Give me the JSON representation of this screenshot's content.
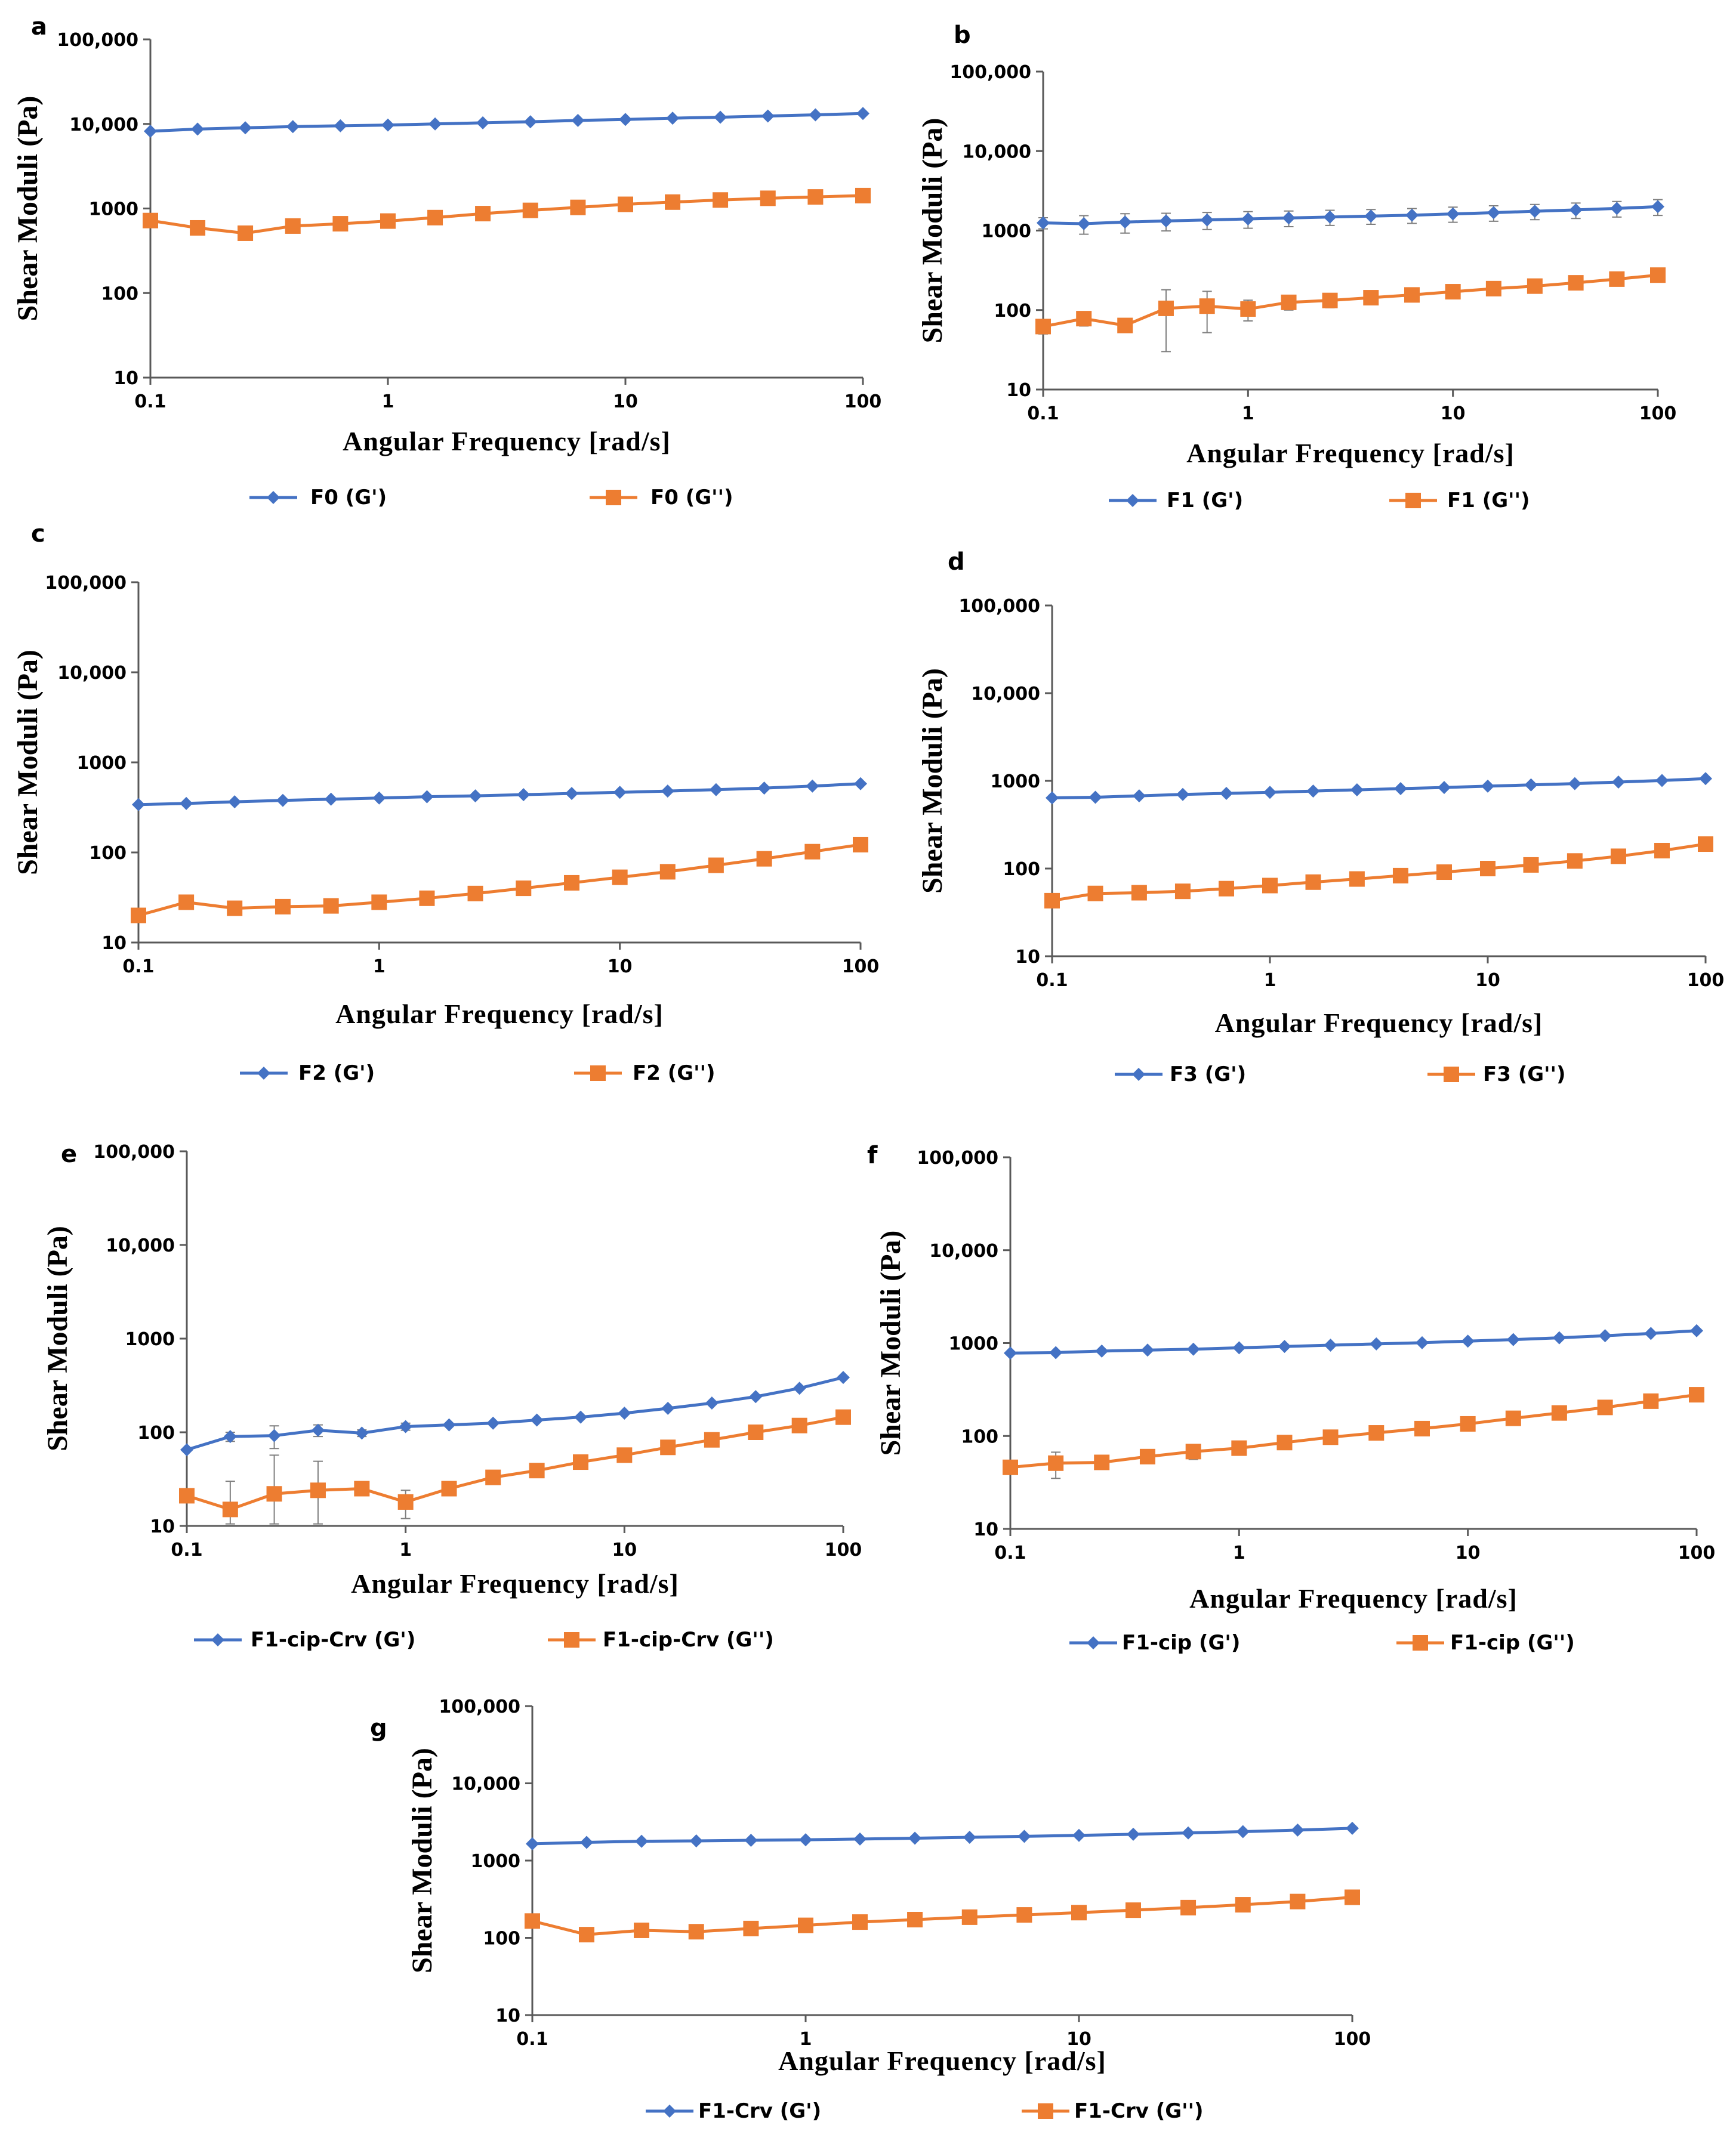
{
  "colors": {
    "gprime": "#4472C4",
    "gdouble": "#ED7D31",
    "axis": "#595959",
    "error": "#7F7F7F"
  },
  "chart_data": [
    {
      "panel": "a",
      "type": "line",
      "ylabel": "Shear Moduli (Pa)",
      "xlabel": "Angular Frequency [rad/s]",
      "xscale": "log",
      "yscale": "log",
      "xlim": [
        0.1,
        100
      ],
      "ylim": [
        10,
        100000
      ],
      "x_tick_labels": [
        "0.1",
        "1",
        "10",
        "100"
      ],
      "y_tick_labels": [
        "10",
        "100",
        "1000",
        "10,000",
        "100,000"
      ],
      "x": [
        0.1,
        0.158,
        0.251,
        0.398,
        0.631,
        1,
        1.58,
        2.51,
        3.98,
        6.31,
        10,
        15.8,
        25.1,
        39.8,
        63.1,
        100
      ],
      "series": [
        {
          "name": "F0 (G')",
          "legend": "F0 (G')",
          "marker": "diamond",
          "values": [
            8200,
            8700,
            9000,
            9300,
            9500,
            9700,
            10000,
            10300,
            10600,
            11000,
            11300,
            11700,
            12000,
            12400,
            12800,
            13300
          ]
        },
        {
          "name": "F0 (G'')",
          "legend": "F0 (G'')",
          "marker": "square",
          "values": [
            720,
            590,
            510,
            620,
            660,
            710,
            780,
            870,
            950,
            1030,
            1120,
            1190,
            1260,
            1320,
            1370,
            1420
          ]
        }
      ]
    },
    {
      "panel": "b",
      "type": "line",
      "ylabel": "Shear Moduli (Pa)",
      "xlabel": "Angular Frequency [rad/s]",
      "xscale": "log",
      "yscale": "log",
      "xlim": [
        0.1,
        100
      ],
      "ylim": [
        10,
        100000
      ],
      "x_tick_labels": [
        "0.1",
        "1",
        "10",
        "100"
      ],
      "y_tick_labels": [
        "10",
        "100",
        "1000",
        "10,000",
        "100,000"
      ],
      "x": [
        0.1,
        0.158,
        0.251,
        0.398,
        0.631,
        1,
        1.58,
        2.51,
        3.98,
        6.31,
        10,
        15.8,
        25.1,
        39.8,
        63.1,
        100
      ],
      "series": [
        {
          "name": "F1 (G')",
          "legend": "F1    (G')",
          "marker": "diamond",
          "values": [
            1250,
            1220,
            1280,
            1320,
            1360,
            1400,
            1440,
            1480,
            1520,
            1560,
            1620,
            1680,
            1750,
            1820,
            1900,
            2000
          ],
          "errors": [
            200,
            320,
            350,
            330,
            330,
            330,
            320,
            320,
            320,
            330,
            350,
            370,
            380,
            400,
            420,
            450
          ]
        },
        {
          "name": "F1 (G'')",
          "legend": "F1    (G'')",
          "marker": "square",
          "values": [
            62,
            78,
            64,
            105,
            112,
            103,
            125,
            132,
            143,
            155,
            170,
            186,
            200,
            220,
            245,
            275
          ],
          "errors": [
            12,
            15,
            10,
            75,
            60,
            30,
            25,
            25,
            25,
            25,
            25,
            25,
            25,
            25,
            25,
            25
          ]
        }
      ]
    },
    {
      "panel": "c",
      "type": "line",
      "ylabel": "Shear Moduli (Pa)",
      "xlabel": "Angular Frequency [rad/s]",
      "xscale": "log",
      "yscale": "log",
      "xlim": [
        0.1,
        100
      ],
      "ylim": [
        10,
        100000
      ],
      "x_tick_labels": [
        "0.1",
        "1",
        "10",
        "100"
      ],
      "y_tick_labels": [
        "10",
        "100",
        "1000",
        "10,000",
        "100,000"
      ],
      "x": [
        0.1,
        0.158,
        0.251,
        0.398,
        0.631,
        1,
        1.58,
        2.51,
        3.98,
        6.31,
        10,
        15.8,
        25.1,
        39.8,
        63.1,
        100
      ],
      "series": [
        {
          "name": "F2 (G')",
          "legend": "F2 (G')",
          "marker": "diamond",
          "values": [
            340,
            350,
            365,
            378,
            390,
            402,
            415,
            425,
            438,
            452,
            465,
            480,
            498,
            518,
            545,
            580
          ]
        },
        {
          "name": "F2 (G'')",
          "legend": "F2 (G'')",
          "marker": "square",
          "values": [
            20,
            28,
            24,
            25,
            25.5,
            28,
            31,
            35,
            40,
            46,
            53,
            61,
            72,
            85,
            102,
            122
          ]
        }
      ]
    },
    {
      "panel": "d",
      "type": "line",
      "ylabel": "Shear Moduli (Pa)",
      "xlabel": "Angular Frequency [rad/s]",
      "xscale": "log",
      "yscale": "log",
      "xlim": [
        0.1,
        100
      ],
      "ylim": [
        10,
        100000
      ],
      "x_tick_labels": [
        "0.1",
        "1",
        "10",
        "100"
      ],
      "y_tick_labels": [
        "10",
        "100",
        "1000",
        "10,000",
        "100,000"
      ],
      "x": [
        0.1,
        0.158,
        0.251,
        0.398,
        0.631,
        1,
        1.58,
        2.51,
        3.98,
        6.31,
        10,
        15.8,
        25.1,
        39.8,
        63.1,
        100
      ],
      "series": [
        {
          "name": "F3 (G')",
          "legend": "F3 (G')",
          "marker": "diamond",
          "values": [
            640,
            650,
            675,
            700,
            720,
            740,
            765,
            790,
            815,
            840,
            870,
            900,
            930,
            970,
            1010,
            1060
          ]
        },
        {
          "name": "F3 (G'')",
          "legend": "F3 (G'')",
          "marker": "square",
          "values": [
            43,
            52,
            53,
            55,
            59,
            64,
            70,
            76,
            83,
            91,
            100,
            110,
            122,
            138,
            160,
            190
          ]
        }
      ]
    },
    {
      "panel": "e",
      "type": "line",
      "ylabel": "Shear Moduli (Pa)",
      "xlabel": "Angular Frequency [rad/s]",
      "xscale": "log",
      "yscale": "log",
      "xlim": [
        0.1,
        100
      ],
      "ylim": [
        10,
        100000
      ],
      "x_tick_labels": [
        "0.1",
        "1",
        "10",
        "100"
      ],
      "y_tick_labels": [
        "10",
        "100",
        "1000",
        "10,000",
        "100,000"
      ],
      "x": [
        0.1,
        0.158,
        0.251,
        0.398,
        0.631,
        1,
        1.58,
        2.51,
        3.98,
        6.31,
        10,
        15.8,
        25.1,
        39.8,
        63.1,
        100
      ],
      "series": [
        {
          "name": "F1-cip-Crv (G')",
          "legend": "F1-cip-Crv (G')",
          "marker": "diamond",
          "values": [
            65,
            90,
            92,
            105,
            98,
            115,
            120,
            125,
            135,
            145,
            160,
            180,
            205,
            240,
            295,
            385
          ],
          "errors": [
            0,
            10,
            25,
            15,
            8,
            10,
            0,
            0,
            0,
            0,
            0,
            0,
            0,
            0,
            0,
            0
          ]
        },
        {
          "name": "F1-cip-Crv (G'')",
          "legend": "F1-cip-Crv (G'')",
          "marker": "square",
          "values": [
            21,
            15,
            22,
            24,
            25,
            18,
            25,
            33,
            39,
            48,
            57,
            69,
            83,
            100,
            118,
            145
          ],
          "errors": [
            0,
            15,
            35,
            25,
            0,
            6,
            0,
            0,
            0,
            0,
            0,
            0,
            0,
            0,
            0,
            0
          ]
        }
      ]
    },
    {
      "panel": "f",
      "type": "line",
      "ylabel": "Shear Moduli (Pa)",
      "xlabel": "Angular Frequency [rad/s]",
      "xscale": "log",
      "yscale": "log",
      "xlim": [
        0.1,
        100
      ],
      "ylim": [
        10,
        100000
      ],
      "x_tick_labels": [
        "0.1",
        "1",
        "10",
        "100"
      ],
      "y_tick_labels": [
        "10",
        "100",
        "1000",
        "10,000",
        "100,000"
      ],
      "x": [
        0.1,
        0.158,
        0.251,
        0.398,
        0.631,
        1,
        1.58,
        2.51,
        3.98,
        6.31,
        10,
        15.8,
        25.1,
        39.8,
        63.1,
        100
      ],
      "series": [
        {
          "name": "F1-cip (G')",
          "legend": "F1-cip (G')",
          "marker": "diamond",
          "values": [
            780,
            790,
            820,
            840,
            860,
            890,
            920,
            950,
            980,
            1010,
            1050,
            1090,
            1140,
            1200,
            1270,
            1360
          ]
        },
        {
          "name": "F1-cip (G'')",
          "legend": "F1-cip (G'')",
          "marker": "square",
          "values": [
            46,
            51,
            52,
            60,
            68,
            74,
            85,
            97,
            108,
            120,
            135,
            155,
            177,
            203,
            237,
            278
          ],
          "errors": [
            0,
            16,
            0,
            0,
            12,
            0,
            0,
            0,
            0,
            0,
            0,
            0,
            0,
            0,
            0,
            0
          ]
        }
      ]
    },
    {
      "panel": "g",
      "type": "line",
      "ylabel": "Shear Moduli (Pa)",
      "xlabel": "Angular Frequency [rad/s]",
      "xscale": "log",
      "yscale": "log",
      "xlim": [
        0.1,
        100
      ],
      "ylim": [
        10,
        100000
      ],
      "x_tick_labels": [
        "0.1",
        "1",
        "10",
        "100"
      ],
      "y_tick_labels": [
        "10",
        "100",
        "1000",
        "10,000",
        "100,000"
      ],
      "x": [
        0.1,
        0.158,
        0.251,
        0.398,
        0.631,
        1,
        1.58,
        2.51,
        3.98,
        6.31,
        10,
        15.8,
        25.1,
        39.8,
        63.1,
        100
      ],
      "series": [
        {
          "name": "F1-Crv (G')",
          "legend": "F1-Crv (G')",
          "marker": "diamond",
          "values": [
            1650,
            1720,
            1780,
            1800,
            1830,
            1860,
            1900,
            1950,
            2000,
            2060,
            2120,
            2190,
            2280,
            2370,
            2480,
            2620
          ]
        },
        {
          "name": "F1-Crv (G'')",
          "legend": "F1-Crv (G'')",
          "marker": "square",
          "values": [
            165,
            110,
            125,
            120,
            132,
            145,
            160,
            172,
            185,
            198,
            212,
            228,
            246,
            268,
            295,
            335
          ]
        }
      ]
    }
  ]
}
